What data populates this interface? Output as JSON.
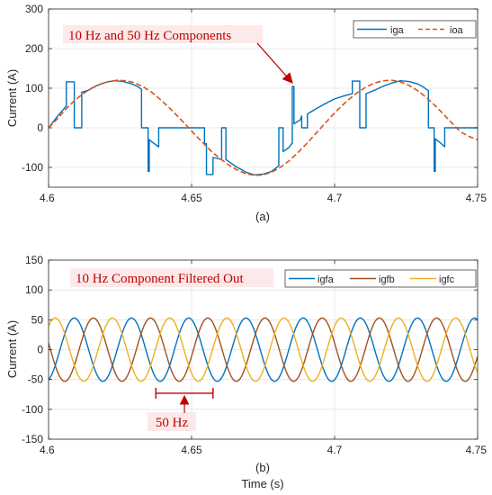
{
  "chart_data": [
    {
      "type": "line",
      "panel_label": "(a)",
      "xlabel": "",
      "ylabel": "Current (A)",
      "xlim": [
        4.6,
        4.75
      ],
      "ylim": [
        -150,
        300
      ],
      "xticks": [
        4.6,
        4.65,
        4.7,
        4.75
      ],
      "xtick_labels": [
        "4.6",
        "4.65",
        "4.7",
        "4.75"
      ],
      "yticks": [
        -100,
        0,
        100,
        200,
        300
      ],
      "ytick_labels": [
        "-100",
        "0",
        "100",
        "200",
        "300"
      ],
      "grid": true,
      "legend_position": "top-right",
      "annotation": "10 Hz and 50 Hz Components",
      "series": [
        {
          "name": "iga",
          "color": "#0072BD",
          "style": "solid",
          "points": [
            [
              4.6,
              0
            ],
            [
              4.603,
              28
            ],
            [
              4.605,
              45
            ],
            [
              4.6062,
              55
            ],
            [
              4.6062,
              116
            ],
            [
              4.609,
              116
            ],
            [
              4.609,
              0
            ],
            [
              4.6116,
              0
            ],
            [
              4.6116,
              90
            ],
            [
              4.614,
              95
            ],
            [
              4.617,
              107
            ],
            [
              4.62,
              115
            ],
            [
              4.623,
              119
            ],
            [
              4.626,
              117
            ],
            [
              4.629,
              111
            ],
            [
              4.631,
              105
            ],
            [
              4.6325,
              97
            ],
            [
              4.6325,
              0
            ],
            [
              4.6348,
              0
            ],
            [
              4.6348,
              -110
            ],
            [
              4.6352,
              -110
            ],
            [
              4.6352,
              -30
            ],
            [
              4.636,
              -35
            ],
            [
              4.6385,
              -48
            ],
            [
              4.6385,
              0
            ],
            [
              4.6425,
              0
            ],
            [
              4.6425,
              0
            ],
            [
              4.645,
              0
            ],
            [
              4.648,
              0
            ],
            [
              4.6502,
              0
            ],
            [
              4.6502,
              0
            ],
            [
              4.6545,
              0
            ],
            [
              4.6545,
              -40
            ],
            [
              4.6552,
              -40
            ],
            [
              4.6552,
              -118
            ],
            [
              4.6575,
              -118
            ],
            [
              4.6575,
              -75
            ],
            [
              4.6605,
              -80
            ],
            [
              4.6605,
              0
            ],
            [
              4.662,
              0
            ],
            [
              4.662,
              -80
            ],
            [
              4.6655,
              -98
            ],
            [
              4.669,
              -112
            ],
            [
              4.672,
              -119
            ],
            [
              4.675,
              -117
            ],
            [
              4.678,
              -110
            ],
            [
              4.6805,
              -96
            ],
            [
              4.6805,
              0
            ],
            [
              4.682,
              0
            ],
            [
              4.682,
              -60
            ],
            [
              4.684,
              -50
            ],
            [
              4.685,
              -40
            ],
            [
              4.6852,
              -40
            ],
            [
              4.6852,
              104
            ],
            [
              4.6858,
              104
            ],
            [
              4.6858,
              10
            ],
            [
              4.688,
              20
            ],
            [
              4.6885,
              30
            ],
            [
              4.6885,
              0
            ],
            [
              4.6905,
              0
            ],
            [
              4.6905,
              35
            ],
            [
              4.694,
              50
            ],
            [
              4.697,
              62
            ],
            [
              4.7,
              73
            ],
            [
              4.703,
              80
            ],
            [
              4.705,
              84
            ],
            [
              4.7062,
              86
            ],
            [
              4.7062,
              118
            ],
            [
              4.7088,
              118
            ],
            [
              4.7088,
              0
            ],
            [
              4.711,
              0
            ],
            [
              4.711,
              86
            ],
            [
              4.714,
              95
            ],
            [
              4.717,
              105
            ],
            [
              4.72,
              113
            ],
            [
              4.723,
              119
            ],
            [
              4.726,
              117
            ],
            [
              4.729,
              111
            ],
            [
              4.731,
              103
            ],
            [
              4.7328,
              94
            ],
            [
              4.7328,
              0
            ],
            [
              4.7348,
              0
            ],
            [
              4.7348,
              -110
            ],
            [
              4.7352,
              -110
            ],
            [
              4.7352,
              -28
            ],
            [
              4.737,
              -38
            ],
            [
              4.7385,
              -48
            ],
            [
              4.7385,
              0
            ],
            [
              4.742,
              0
            ],
            [
              4.745,
              0
            ],
            [
              4.748,
              0
            ],
            [
              4.75,
              0
            ]
          ]
        },
        {
          "name": "ioa",
          "color": "#D95319",
          "style": "dashed",
          "points": [
            [
              4.6,
              0
            ],
            [
              4.603,
              22
            ],
            [
              4.606,
              47
            ],
            [
              4.609,
              68
            ],
            [
              4.612,
              86
            ],
            [
              4.615,
              100
            ],
            [
              4.618,
              110
            ],
            [
              4.621,
              117
            ],
            [
              4.624,
              120
            ],
            [
              4.627,
              119
            ],
            [
              4.63,
              114
            ],
            [
              4.633,
              104
            ],
            [
              4.636,
              90
            ],
            [
              4.639,
              72
            ],
            [
              4.642,
              52
            ],
            [
              4.645,
              30
            ],
            [
              4.648,
              8
            ],
            [
              4.651,
              -16
            ],
            [
              4.654,
              -38
            ],
            [
              4.657,
              -60
            ],
            [
              4.66,
              -78
            ],
            [
              4.663,
              -94
            ],
            [
              4.666,
              -107
            ],
            [
              4.669,
              -116
            ],
            [
              4.672,
              -120
            ],
            [
              4.675,
              -119
            ],
            [
              4.678,
              -112
            ],
            [
              4.681,
              -100
            ],
            [
              4.684,
              -84
            ],
            [
              4.687,
              -64
            ],
            [
              4.69,
              -42
            ],
            [
              4.693,
              -18
            ],
            [
              4.696,
              6
            ],
            [
              4.699,
              30
            ],
            [
              4.702,
              52
            ],
            [
              4.705,
              72
            ],
            [
              4.708,
              89
            ],
            [
              4.711,
              103
            ],
            [
              4.714,
              113
            ],
            [
              4.717,
              119
            ],
            [
              4.72,
              120
            ],
            [
              4.723,
              116
            ],
            [
              4.726,
              107
            ],
            [
              4.729,
              94
            ],
            [
              4.732,
              77
            ],
            [
              4.735,
              57
            ],
            [
              4.738,
              35
            ],
            [
              4.741,
              12
            ],
            [
              4.744,
              -10
            ],
            [
              4.747,
              -22
            ],
            [
              4.75,
              -30
            ]
          ]
        }
      ]
    },
    {
      "type": "line",
      "panel_label": "(b)",
      "xlabel": "Time (s)",
      "ylabel": "Current (A)",
      "xlim": [
        4.6,
        4.75
      ],
      "ylim": [
        -150,
        150
      ],
      "xticks": [
        4.6,
        4.65,
        4.7,
        4.75
      ],
      "xtick_labels": [
        "4.6",
        "4.65",
        "4.7",
        "4.75"
      ],
      "yticks": [
        -150,
        -100,
        -50,
        0,
        50,
        100,
        150
      ],
      "ytick_labels": [
        "-150",
        "-100",
        "-50",
        "0",
        "50",
        "100",
        "150"
      ],
      "grid": true,
      "legend_position": "top-right",
      "annotation": "10 Hz Component Filtered Out",
      "period_marker": {
        "label": "50 Hz",
        "x_start": 4.6375,
        "x_end": 4.6575,
        "y": -73
      },
      "signal_model": {
        "amplitude": 53,
        "frequency_hz": 50
      },
      "series": [
        {
          "name": "igfa",
          "color": "#0072BD",
          "phase_deg": -72
        },
        {
          "name": "igfb",
          "color": "#A2511F",
          "phase_deg": 168
        },
        {
          "name": "igfc",
          "color": "#EDB120",
          "phase_deg": 48
        }
      ]
    }
  ]
}
